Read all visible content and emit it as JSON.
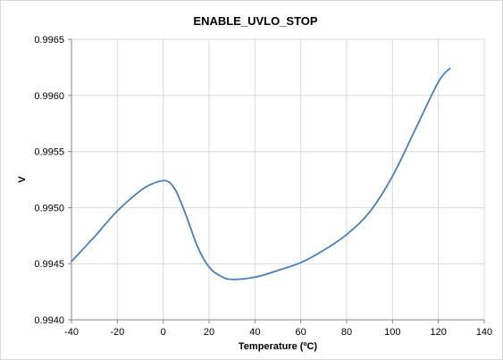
{
  "chart_data": {
    "type": "line",
    "title": "ENABLE_UVLO_STOP",
    "xlabel": "Temperature (ºC)",
    "ylabel": "V",
    "xlim": [
      -40,
      140
    ],
    "ylim": [
      0.994,
      0.9965
    ],
    "x_ticks": [
      "-40",
      "-20",
      "0",
      "20",
      "40",
      "60",
      "80",
      "100",
      "120",
      "140"
    ],
    "y_ticks": [
      "0.9940",
      "0.9945",
      "0.9950",
      "0.9955",
      "0.9960",
      "0.9965"
    ],
    "grid": true,
    "legend": "none",
    "series": [
      {
        "color": "#4a7ebb",
        "x": [
          -40,
          -30,
          -20,
          -10,
          -5,
          0,
          3,
          6,
          10,
          15,
          20,
          25,
          30,
          40,
          50,
          60,
          70,
          80,
          90,
          100,
          110,
          120,
          125
        ],
        "y": [
          0.99452,
          0.99474,
          0.99497,
          0.99515,
          0.99521,
          0.99524,
          0.99522,
          0.99513,
          0.99493,
          0.99465,
          0.99447,
          0.99439,
          0.99436,
          0.99438,
          0.99444,
          0.99451,
          0.99462,
          0.99476,
          0.99496,
          0.99528,
          0.9957,
          0.99612,
          0.99624
        ]
      }
    ]
  }
}
